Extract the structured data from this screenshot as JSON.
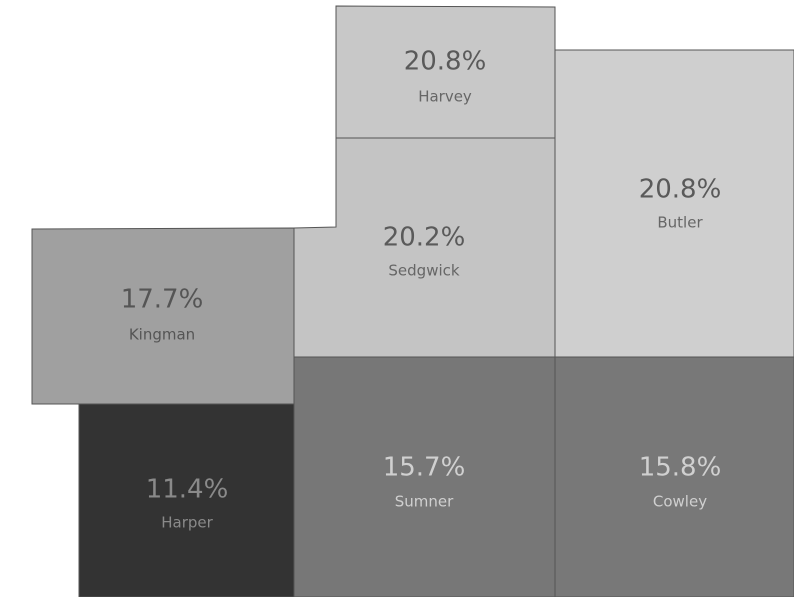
{
  "map": {
    "regions": [
      {
        "name": "Harvey",
        "value": 20.8,
        "value_label": "20.8%",
        "color": "#c8c8c8"
      },
      {
        "name": "Sedgwick",
        "value": 20.2,
        "value_label": "20.2%",
        "color": "#c4c4c4"
      },
      {
        "name": "Butler",
        "value": 20.8,
        "value_label": "20.8%",
        "color": "#cfcfcf"
      },
      {
        "name": "Kingman",
        "value": 17.7,
        "value_label": "17.7%",
        "color": "#a0a0a0"
      },
      {
        "name": "Harper",
        "value": 11.4,
        "value_label": "11.4%",
        "color": "#333333"
      },
      {
        "name": "Sumner",
        "value": 15.7,
        "value_label": "15.7%",
        "color": "#777777"
      },
      {
        "name": "Cowley",
        "value": 15.8,
        "value_label": "15.8%",
        "color": "#787878"
      }
    ]
  }
}
